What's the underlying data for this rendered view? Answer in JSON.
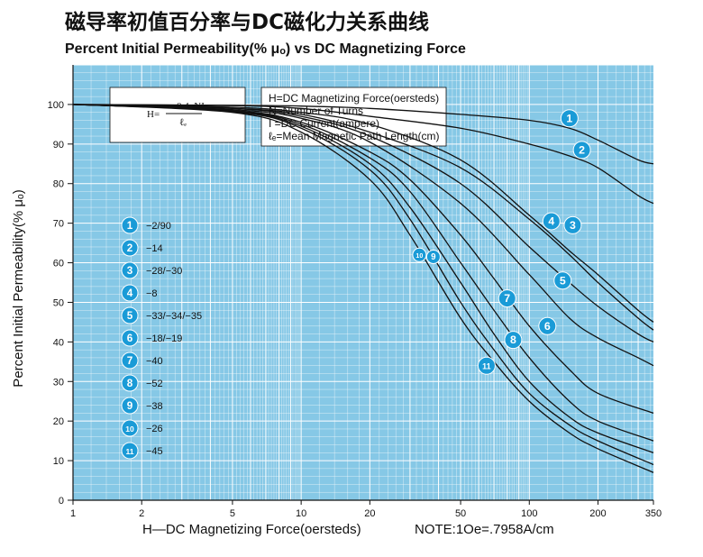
{
  "chart_data": {
    "type": "line",
    "title": "磁导率初值百分率与DC磁化力关系曲线",
    "subtitle": "Percent Initial Permeability(% μₒ) vs DC Magnetizing Force",
    "xlabel": "H—DC Magnetizing Force(oersteds)",
    "ylabel": "Percent Initial Permeability(% μₒ)",
    "note": "NOTE:1Oe=.7958A/cm",
    "x_scale": "log",
    "xlim": [
      1,
      350
    ],
    "ylim": [
      0,
      110
    ],
    "x_ticks": [
      1,
      2,
      5,
      10,
      20,
      50,
      100,
      200,
      350
    ],
    "y_ticks": [
      0,
      10,
      20,
      30,
      40,
      50,
      60,
      70,
      80,
      90,
      100
    ],
    "grid": true,
    "colors": {
      "plot_bg": "#86c8e6",
      "grid": "#ffffff",
      "line": "#111111",
      "badge": "#1a9bd7"
    },
    "formula": {
      "left": "H=",
      "numerator": "0.4πNI",
      "denominator": "ℓₑ"
    },
    "definitions": [
      "H=DC Magnetizing Force(oersteds)",
      "N=Number of Turns",
      "I =DC Current(ampere)",
      "ℓₑ=Mean Magnetic Path Length(cm)"
    ],
    "series": [
      {
        "name": "1",
        "legend": "−2/90",
        "x": [
          1,
          5,
          10,
          20,
          50,
          100,
          150,
          200,
          300,
          350
        ],
        "y": [
          100,
          99.8,
          99.6,
          99,
          97.5,
          96,
          94,
          91,
          86,
          85
        ]
      },
      {
        "name": "2",
        "legend": "−14",
        "x": [
          1,
          5,
          10,
          20,
          50,
          100,
          150,
          200,
          300,
          350
        ],
        "y": [
          100,
          99.7,
          99,
          97,
          94,
          90,
          87,
          84,
          77,
          75
        ]
      },
      {
        "name": "3",
        "legend": "−28/−30",
        "x": [
          1,
          5,
          10,
          20,
          50,
          100,
          150,
          200,
          300,
          350
        ],
        "y": [
          100,
          99.3,
          98,
          95,
          86,
          72,
          63,
          57,
          48,
          45
        ]
      },
      {
        "name": "4",
        "legend": "−8",
        "x": [
          1,
          5,
          10,
          20,
          50,
          100,
          150,
          200,
          300,
          350
        ],
        "y": [
          100,
          99,
          97.5,
          93,
          84,
          71,
          62,
          55,
          46,
          43
        ]
      },
      {
        "name": "5",
        "legend": "−33/−34/−35",
        "x": [
          1,
          5,
          10,
          20,
          50,
          100,
          150,
          200,
          300,
          350
        ],
        "y": [
          100,
          99,
          97,
          92,
          80,
          64,
          55,
          49,
          42,
          40
        ]
      },
      {
        "name": "6",
        "legend": "−18/−19",
        "x": [
          1,
          5,
          10,
          20,
          50,
          100,
          150,
          200,
          300,
          350
        ],
        "y": [
          100,
          98.7,
          96.5,
          90.5,
          75,
          57,
          46,
          41,
          36,
          34
        ]
      },
      {
        "name": "7",
        "legend": "−40",
        "x": [
          1,
          5,
          10,
          20,
          30,
          50,
          70,
          100,
          150,
          200,
          350
        ],
        "y": [
          100,
          98.5,
          95.5,
          88,
          81,
          67,
          56,
          44,
          33,
          27,
          22
        ]
      },
      {
        "name": "8",
        "legend": "−52",
        "x": [
          1,
          5,
          10,
          20,
          30,
          50,
          70,
          100,
          150,
          200,
          350
        ],
        "y": [
          100,
          98.4,
          95,
          86.5,
          78,
          60,
          48,
          36,
          25,
          20,
          15
        ]
      },
      {
        "name": "9",
        "legend": "−38",
        "x": [
          1,
          5,
          10,
          20,
          30,
          50,
          70,
          100,
          150,
          200,
          350
        ],
        "y": [
          100,
          98.3,
          94.5,
          85,
          74,
          55,
          42,
          30,
          21,
          17,
          12
        ]
      },
      {
        "name": "10",
        "legend": "−26",
        "x": [
          1,
          5,
          10,
          20,
          30,
          50,
          70,
          100,
          150,
          200,
          350
        ],
        "y": [
          100,
          98.2,
          94,
          83.5,
          71,
          50,
          38,
          27,
          19,
          15,
          9
        ]
      },
      {
        "name": "11",
        "legend": "−45",
        "x": [
          1,
          5,
          10,
          20,
          30,
          50,
          70,
          100,
          150,
          200,
          350
        ],
        "y": [
          100,
          98,
          93,
          81,
          67,
          46,
          35,
          25,
          17,
          13,
          7
        ]
      }
    ],
    "curve_labels": [
      {
        "series": "1",
        "x": 150,
        "y": 96.5
      },
      {
        "series": "2",
        "x": 170,
        "y": 88.5
      },
      {
        "series": "3",
        "x": 155,
        "y": 69.5
      },
      {
        "series": "4",
        "x": 125,
        "y": 70.5
      },
      {
        "series": "5",
        "x": 140,
        "y": 55.5
      },
      {
        "series": "6",
        "x": 120,
        "y": 44
      },
      {
        "series": "7",
        "x": 80,
        "y": 51
      },
      {
        "series": "8",
        "x": 85,
        "y": 40.5
      },
      {
        "series": "9",
        "x": 38,
        "y": 61.5
      },
      {
        "series": "10",
        "x": 33,
        "y": 62
      },
      {
        "series": "11",
        "x": 65,
        "y": 34
      }
    ]
  }
}
